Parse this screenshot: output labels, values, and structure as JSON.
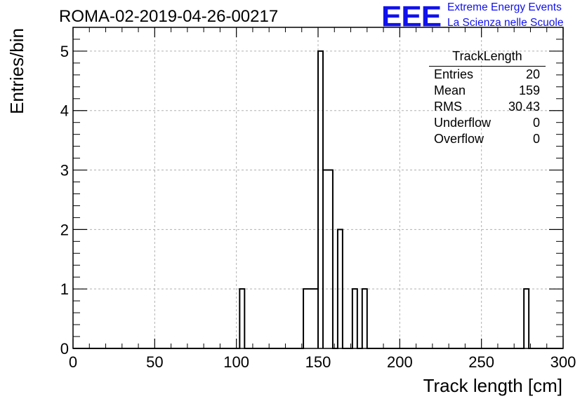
{
  "header": {
    "title": "ROMA-02-2019-04-26-00217",
    "logo_text": "EEE",
    "logo_line1": "Extreme Energy Events",
    "logo_line2": "La Scienza nelle Scuole"
  },
  "stats_box": {
    "title": "TrackLength",
    "rows": [
      {
        "label": "Entries",
        "value": "20"
      },
      {
        "label": "Mean",
        "value": "159"
      },
      {
        "label": "RMS",
        "value": "30.43"
      },
      {
        "label": "Underflow",
        "value": "0"
      },
      {
        "label": "Overflow",
        "value": "0"
      }
    ]
  },
  "colors": {
    "logo": "#1111ee",
    "line": "#000000",
    "grid": "#b0b0b0"
  },
  "chart_data": {
    "type": "histogram",
    "xlabel": "Track length [cm]",
    "ylabel": "Entries/bin",
    "xlim": [
      0,
      300
    ],
    "ylim": [
      0,
      5.4
    ],
    "grid": true,
    "x_ticks": [
      0,
      50,
      100,
      150,
      200,
      250,
      300
    ],
    "y_ticks": [
      0,
      1,
      2,
      3,
      4,
      5
    ],
    "bin_width": 3,
    "bins": [
      {
        "x_low": 102,
        "x_high": 105,
        "count": 1
      },
      {
        "x_low": 141,
        "x_high": 150,
        "count": 1
      },
      {
        "x_low": 150,
        "x_high": 153,
        "count": 5
      },
      {
        "x_low": 153,
        "x_high": 159,
        "count": 3
      },
      {
        "x_low": 162,
        "x_high": 165,
        "count": 2
      },
      {
        "x_low": 171,
        "x_high": 174,
        "count": 1
      },
      {
        "x_low": 177,
        "x_high": 180,
        "count": 1
      },
      {
        "x_low": 276,
        "x_high": 279,
        "count": 1
      }
    ]
  }
}
